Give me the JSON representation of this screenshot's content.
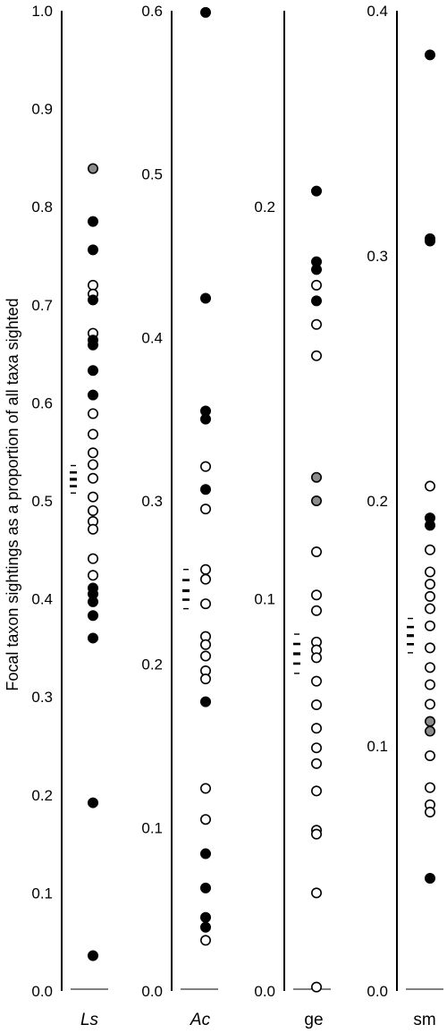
{
  "chart_data": [
    {
      "type": "scatter",
      "category": "Ls",
      "italic": true,
      "ylim": [
        0,
        1
      ],
      "yticks": [
        0.0,
        0.1,
        0.2,
        0.3,
        0.4,
        0.5,
        0.6,
        0.7,
        0.8,
        0.9,
        1.0
      ],
      "ytick_labels": [
        "0.0",
        "0.1",
        "0.2",
        "0.3",
        "0.4",
        "0.5",
        "0.6",
        "0.7",
        "0.8",
        "0.9",
        "1.0"
      ],
      "mean": 0.522,
      "ci": [
        0.508,
        0.536
      ],
      "points": [
        {
          "y": 0.839,
          "fill": "gray"
        },
        {
          "y": 0.785,
          "fill": "black"
        },
        {
          "y": 0.756,
          "fill": "black"
        },
        {
          "y": 0.72,
          "fill": "white"
        },
        {
          "y": 0.711,
          "fill": "white"
        },
        {
          "y": 0.705,
          "fill": "black"
        },
        {
          "y": 0.671,
          "fill": "white"
        },
        {
          "y": 0.664,
          "fill": "black"
        },
        {
          "y": 0.659,
          "fill": "black"
        },
        {
          "y": 0.633,
          "fill": "black"
        },
        {
          "y": 0.608,
          "fill": "black"
        },
        {
          "y": 0.589,
          "fill": "white"
        },
        {
          "y": 0.568,
          "fill": "white"
        },
        {
          "y": 0.549,
          "fill": "white"
        },
        {
          "y": 0.537,
          "fill": "white"
        },
        {
          "y": 0.523,
          "fill": "white"
        },
        {
          "y": 0.504,
          "fill": "white"
        },
        {
          "y": 0.49,
          "fill": "white"
        },
        {
          "y": 0.479,
          "fill": "white"
        },
        {
          "y": 0.471,
          "fill": "white"
        },
        {
          "y": 0.441,
          "fill": "white"
        },
        {
          "y": 0.424,
          "fill": "white"
        },
        {
          "y": 0.411,
          "fill": "black"
        },
        {
          "y": 0.405,
          "fill": "black"
        },
        {
          "y": 0.397,
          "fill": "black"
        },
        {
          "y": 0.383,
          "fill": "black"
        },
        {
          "y": 0.36,
          "fill": "black"
        },
        {
          "y": 0.192,
          "fill": "black"
        },
        {
          "y": 0.036,
          "fill": "black"
        }
      ]
    },
    {
      "type": "scatter",
      "category": "Ac",
      "italic": true,
      "ylim": [
        0,
        0.6
      ],
      "yticks": [
        0.0,
        0.1,
        0.2,
        0.3,
        0.4,
        0.5,
        0.6
      ],
      "ytick_labels": [
        "0.0",
        "0.1",
        "0.2",
        "0.3",
        "0.4",
        "0.5",
        "0.6"
      ],
      "mean": 0.245,
      "ci": [
        0.234,
        0.258
      ],
      "points": [
        {
          "y": 0.599,
          "fill": "black"
        },
        {
          "y": 0.424,
          "fill": "black"
        },
        {
          "y": 0.355,
          "fill": "black"
        },
        {
          "y": 0.35,
          "fill": "black"
        },
        {
          "y": 0.321,
          "fill": "white"
        },
        {
          "y": 0.307,
          "fill": "black"
        },
        {
          "y": 0.295,
          "fill": "white"
        },
        {
          "y": 0.258,
          "fill": "white"
        },
        {
          "y": 0.252,
          "fill": "white"
        },
        {
          "y": 0.237,
          "fill": "white"
        },
        {
          "y": 0.217,
          "fill": "white"
        },
        {
          "y": 0.212,
          "fill": "white"
        },
        {
          "y": 0.205,
          "fill": "white"
        },
        {
          "y": 0.196,
          "fill": "white"
        },
        {
          "y": 0.191,
          "fill": "white"
        },
        {
          "y": 0.177,
          "fill": "black"
        },
        {
          "y": 0.124,
          "fill": "white"
        },
        {
          "y": 0.105,
          "fill": "white"
        },
        {
          "y": 0.084,
          "fill": "black"
        },
        {
          "y": 0.063,
          "fill": "black"
        },
        {
          "y": 0.045,
          "fill": "black"
        },
        {
          "y": 0.039,
          "fill": "black"
        },
        {
          "y": 0.031,
          "fill": "white"
        }
      ]
    },
    {
      "type": "scatter",
      "category": "ge",
      "italic": false,
      "ylim": [
        0,
        0.25
      ],
      "yticks": [
        0.0,
        0.1,
        0.2
      ],
      "ytick_labels": [
        "0.0",
        "0.1",
        "0.2"
      ],
      "mean": 0.086,
      "ci": [
        0.081,
        0.091
      ],
      "points": [
        {
          "y": 0.204,
          "fill": "black"
        },
        {
          "y": 0.186,
          "fill": "black"
        },
        {
          "y": 0.184,
          "fill": "black"
        },
        {
          "y": 0.18,
          "fill": "white"
        },
        {
          "y": 0.176,
          "fill": "black"
        },
        {
          "y": 0.17,
          "fill": "white"
        },
        {
          "y": 0.162,
          "fill": "white"
        },
        {
          "y": 0.131,
          "fill": "gray"
        },
        {
          "y": 0.125,
          "fill": "gray"
        },
        {
          "y": 0.112,
          "fill": "white"
        },
        {
          "y": 0.101,
          "fill": "white"
        },
        {
          "y": 0.097,
          "fill": "white"
        },
        {
          "y": 0.089,
          "fill": "white"
        },
        {
          "y": 0.087,
          "fill": "white"
        },
        {
          "y": 0.085,
          "fill": "white"
        },
        {
          "y": 0.079,
          "fill": "white"
        },
        {
          "y": 0.073,
          "fill": "white"
        },
        {
          "y": 0.067,
          "fill": "white"
        },
        {
          "y": 0.062,
          "fill": "white"
        },
        {
          "y": 0.058,
          "fill": "white"
        },
        {
          "y": 0.051,
          "fill": "white"
        },
        {
          "y": 0.041,
          "fill": "white"
        },
        {
          "y": 0.04,
          "fill": "white"
        },
        {
          "y": 0.025,
          "fill": "white"
        },
        {
          "y": 0.001,
          "fill": "white"
        }
      ]
    },
    {
      "type": "scatter",
      "category": "sm",
      "italic": false,
      "ylim": [
        0,
        0.4
      ],
      "yticks": [
        0.0,
        0.1,
        0.2,
        0.3,
        0.4
      ],
      "ytick_labels": [
        "0.0",
        "0.1",
        "0.2",
        "0.3",
        "0.4"
      ],
      "mean": 0.145,
      "ci": [
        0.138,
        0.152
      ],
      "points": [
        {
          "y": 0.382,
          "fill": "black"
        },
        {
          "y": 0.307,
          "fill": "black"
        },
        {
          "y": 0.306,
          "fill": "black"
        },
        {
          "y": 0.206,
          "fill": "white"
        },
        {
          "y": 0.193,
          "fill": "black"
        },
        {
          "y": 0.19,
          "fill": "black"
        },
        {
          "y": 0.18,
          "fill": "white"
        },
        {
          "y": 0.171,
          "fill": "white"
        },
        {
          "y": 0.166,
          "fill": "white"
        },
        {
          "y": 0.161,
          "fill": "white"
        },
        {
          "y": 0.156,
          "fill": "white"
        },
        {
          "y": 0.149,
          "fill": "white"
        },
        {
          "y": 0.14,
          "fill": "white"
        },
        {
          "y": 0.132,
          "fill": "white"
        },
        {
          "y": 0.125,
          "fill": "white"
        },
        {
          "y": 0.117,
          "fill": "white"
        },
        {
          "y": 0.11,
          "fill": "gray"
        },
        {
          "y": 0.106,
          "fill": "gray"
        },
        {
          "y": 0.096,
          "fill": "white"
        },
        {
          "y": 0.083,
          "fill": "white"
        },
        {
          "y": 0.076,
          "fill": "white"
        },
        {
          "y": 0.073,
          "fill": "white"
        },
        {
          "y": 0.046,
          "fill": "black"
        }
      ]
    }
  ],
  "ylabel": "Focal taxon sightings as a proportion of all taxa sighted",
  "colors": {
    "black": "#000000",
    "gray": "#8c8c8c",
    "white": "#ffffff"
  }
}
